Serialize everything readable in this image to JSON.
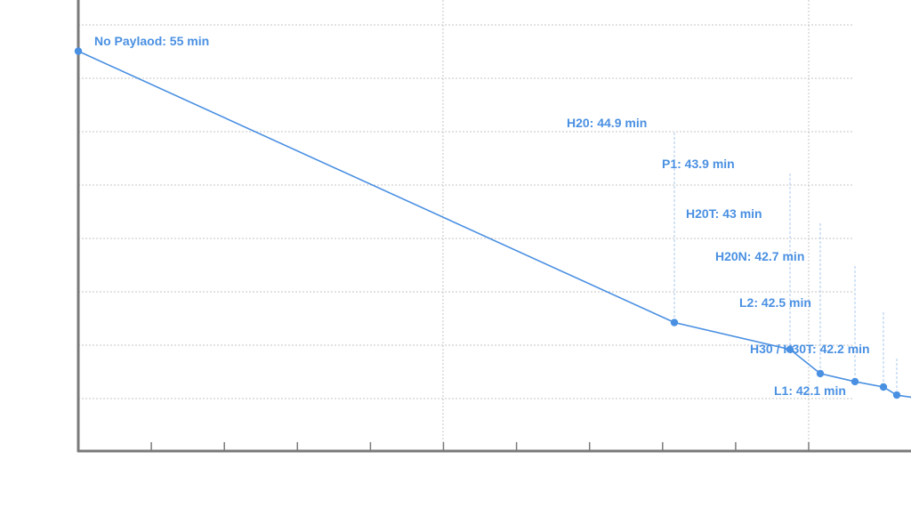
{
  "colors": {
    "series": "#4a90e2",
    "label": "#4a90e2",
    "leader": "#a9c9ee",
    "axis": "#7a7a7a",
    "grid": "#c4c4c4"
  },
  "chart_data": {
    "type": "line",
    "title": "",
    "xlabel": "",
    "ylabel": "",
    "grid": true,
    "legend": "none",
    "series": [
      {
        "points": [
          {
            "x": 0,
            "y": 55.0,
            "label": "No Paylaod: 55 min"
          },
          {
            "x": 670,
            "y": 44.9,
            "label": "H20: 44.9 min"
          },
          {
            "x": 800,
            "y": 43.9,
            "label": "P1: 43.9 min"
          },
          {
            "x": 834,
            "y": 43.0,
            "label": "H20T: 43 min"
          },
          {
            "x": 873,
            "y": 42.7,
            "label": "H20N: 42.7 min"
          },
          {
            "x": 905,
            "y": 42.5,
            "label": "L2: 42.5 min"
          },
          {
            "x": 920,
            "y": 42.2,
            "label": "H30 / H30T: 42.2 min"
          },
          {
            "x": 940,
            "y": 42.1,
            "label": "L1: 42.1 min"
          }
        ]
      }
    ]
  }
}
